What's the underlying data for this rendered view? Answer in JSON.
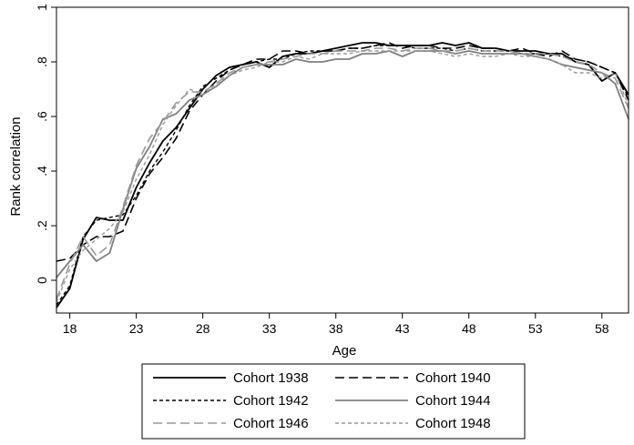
{
  "chart_data": {
    "type": "line",
    "xlabel": "Age",
    "ylabel": "Rank correlation",
    "xlim": [
      17,
      60
    ],
    "ylim": [
      -0.12,
      1.0
    ],
    "xticks": [
      18,
      23,
      28,
      33,
      38,
      43,
      48,
      53,
      58
    ],
    "yticks": [
      0,
      0.2,
      0.4,
      0.6,
      0.8,
      1
    ],
    "ytick_labels": [
      "0",
      ".2",
      ".4",
      ".6",
      ".8",
      "1"
    ],
    "grid": false,
    "legend_position": "bottom",
    "series": [
      {
        "name": "Cohort 1938",
        "color": "#000000",
        "dash": "",
        "width": 1.8,
        "x": [
          17,
          18,
          19,
          20,
          21,
          22,
          23,
          24,
          25,
          26,
          27,
          28,
          29,
          30,
          31,
          32,
          33,
          34,
          35,
          36,
          37,
          38,
          39,
          40,
          41,
          42,
          43,
          44,
          45,
          46,
          47,
          48,
          49,
          50,
          51,
          52,
          53,
          54,
          55,
          56,
          57,
          58,
          59,
          60
        ],
        "y": [
          -0.1,
          -0.03,
          0.15,
          0.23,
          0.22,
          0.22,
          0.34,
          0.43,
          0.51,
          0.56,
          0.63,
          0.7,
          0.75,
          0.78,
          0.79,
          0.8,
          0.78,
          0.82,
          0.83,
          0.83,
          0.84,
          0.85,
          0.86,
          0.87,
          0.87,
          0.86,
          0.86,
          0.86,
          0.86,
          0.87,
          0.86,
          0.87,
          0.85,
          0.85,
          0.84,
          0.84,
          0.84,
          0.83,
          0.83,
          0.8,
          0.79,
          0.73,
          0.76,
          0.68
        ]
      },
      {
        "name": "Cohort 1940",
        "color": "#000000",
        "dash": "10,5",
        "width": 1.6,
        "x": [
          17,
          18,
          19,
          20,
          21,
          22,
          23,
          24,
          25,
          26,
          27,
          28,
          29,
          30,
          31,
          32,
          33,
          34,
          35,
          36,
          37,
          38,
          39,
          40,
          41,
          42,
          43,
          44,
          45,
          46,
          47,
          48,
          49,
          50,
          51,
          52,
          53,
          54,
          55,
          56,
          57,
          58,
          59,
          60
        ],
        "y": [
          0.07,
          0.08,
          0.13,
          0.16,
          0.16,
          0.18,
          0.3,
          0.39,
          0.45,
          0.52,
          0.62,
          0.68,
          0.73,
          0.77,
          0.79,
          0.81,
          0.81,
          0.84,
          0.84,
          0.83,
          0.84,
          0.84,
          0.85,
          0.85,
          0.86,
          0.87,
          0.85,
          0.86,
          0.86,
          0.85,
          0.85,
          0.86,
          0.85,
          0.85,
          0.84,
          0.85,
          0.83,
          0.82,
          0.84,
          0.81,
          0.8,
          0.78,
          0.76,
          0.66
        ]
      },
      {
        "name": "Cohort 1942",
        "color": "#000000",
        "dash": "4,3",
        "width": 1.4,
        "x": [
          17,
          18,
          19,
          20,
          21,
          22,
          23,
          24,
          25,
          26,
          27,
          28,
          29,
          30,
          31,
          32,
          33,
          34,
          35,
          36,
          37,
          38,
          39,
          40,
          41,
          42,
          43,
          44,
          45,
          46,
          47,
          48,
          49,
          50,
          51,
          52,
          53,
          54,
          55,
          56,
          57,
          58,
          59,
          60
        ],
        "y": [
          -0.09,
          -0.02,
          0.16,
          0.22,
          0.23,
          0.24,
          0.31,
          0.4,
          0.47,
          0.55,
          0.64,
          0.71,
          0.74,
          0.77,
          0.79,
          0.8,
          0.81,
          0.81,
          0.83,
          0.84,
          0.84,
          0.84,
          0.85,
          0.85,
          0.86,
          0.86,
          0.86,
          0.85,
          0.85,
          0.85,
          0.84,
          0.85,
          0.84,
          0.84,
          0.84,
          0.83,
          0.83,
          0.83,
          0.82,
          0.81,
          0.8,
          0.78,
          0.76,
          0.67
        ]
      },
      {
        "name": "Cohort 1944",
        "color": "#808080",
        "dash": "",
        "width": 1.8,
        "x": [
          17,
          18,
          19,
          20,
          21,
          22,
          23,
          24,
          25,
          26,
          27,
          28,
          29,
          30,
          31,
          32,
          33,
          34,
          35,
          36,
          37,
          38,
          39,
          40,
          41,
          42,
          43,
          44,
          45,
          46,
          47,
          48,
          49,
          50,
          51,
          52,
          53,
          54,
          55,
          56,
          57,
          58,
          59,
          60
        ],
        "y": [
          0.01,
          0.07,
          0.13,
          0.07,
          0.1,
          0.26,
          0.41,
          0.49,
          0.59,
          0.61,
          0.66,
          0.68,
          0.71,
          0.75,
          0.78,
          0.79,
          0.79,
          0.79,
          0.81,
          0.8,
          0.8,
          0.81,
          0.81,
          0.83,
          0.83,
          0.84,
          0.82,
          0.84,
          0.84,
          0.84,
          0.83,
          0.84,
          0.83,
          0.83,
          0.83,
          0.83,
          0.82,
          0.81,
          0.79,
          0.78,
          0.77,
          0.76,
          0.72,
          0.59
        ]
      },
      {
        "name": "Cohort 1946",
        "color": "#999999",
        "dash": "10,5",
        "width": 1.6,
        "x": [
          17,
          18,
          19,
          20,
          21,
          22,
          23,
          24,
          25,
          26,
          27,
          28,
          29,
          30,
          31,
          32,
          33,
          34,
          35,
          36,
          37,
          38,
          39,
          40,
          41,
          42,
          43,
          44,
          45,
          46,
          47,
          48,
          49,
          50,
          51,
          52,
          53,
          54,
          55,
          56,
          57,
          58,
          59,
          60
        ],
        "y": [
          -0.07,
          0.06,
          0.16,
          0.09,
          0.13,
          0.27,
          0.42,
          0.52,
          0.58,
          0.65,
          0.69,
          0.69,
          0.72,
          0.76,
          0.78,
          0.79,
          0.8,
          0.81,
          0.82,
          0.83,
          0.83,
          0.84,
          0.84,
          0.84,
          0.85,
          0.85,
          0.84,
          0.85,
          0.85,
          0.84,
          0.84,
          0.85,
          0.84,
          0.84,
          0.84,
          0.83,
          0.83,
          0.83,
          0.82,
          0.8,
          0.79,
          0.76,
          0.74,
          0.63
        ]
      },
      {
        "name": "Cohort 1948",
        "color": "#999999",
        "dash": "4,3",
        "width": 1.4,
        "x": [
          17,
          18,
          19,
          20,
          21,
          22,
          23,
          24,
          25,
          26,
          27,
          28,
          29,
          30,
          31,
          32,
          33,
          34,
          35,
          36,
          37,
          38,
          39,
          40,
          41,
          42,
          43,
          44,
          45,
          46,
          47,
          48,
          49,
          50,
          51,
          52,
          53,
          54,
          55,
          56,
          57,
          58,
          59,
          60
        ],
        "y": [
          -0.08,
          0.04,
          0.11,
          0.15,
          0.19,
          0.25,
          0.37,
          0.46,
          0.57,
          0.64,
          0.7,
          0.68,
          0.72,
          0.75,
          0.77,
          0.78,
          0.8,
          0.8,
          0.82,
          0.81,
          0.83,
          0.83,
          0.83,
          0.84,
          0.84,
          0.84,
          0.84,
          0.84,
          0.84,
          0.83,
          0.82,
          0.83,
          0.82,
          0.82,
          0.83,
          0.82,
          0.82,
          0.81,
          0.79,
          0.76,
          0.76,
          0.74,
          0.76,
          0.64
        ]
      }
    ]
  }
}
